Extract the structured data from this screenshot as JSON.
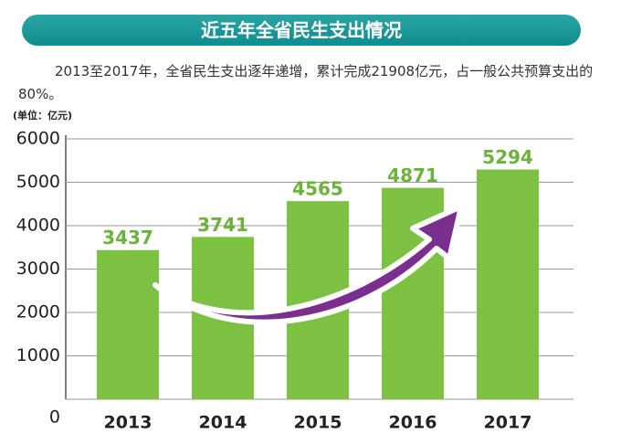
{
  "chart_data": {
    "type": "bar",
    "title": "近五年全省民生支出情况",
    "subtitle": "2013至2017年，全省民生支出逐年递增，累计完成21908亿元，占一般公共预算支出的80%。",
    "unit_label": "(单位：亿元)",
    "categories": [
      "2013",
      "2014",
      "2015",
      "2016",
      "2017"
    ],
    "values": [
      3437,
      3741,
      4565,
      4871,
      5294
    ],
    "color": "#7cc142",
    "ylim": [
      0,
      6000
    ],
    "yticks": [
      0,
      1000,
      2000,
      3000,
      4000,
      5000,
      6000
    ],
    "grid": true
  }
}
